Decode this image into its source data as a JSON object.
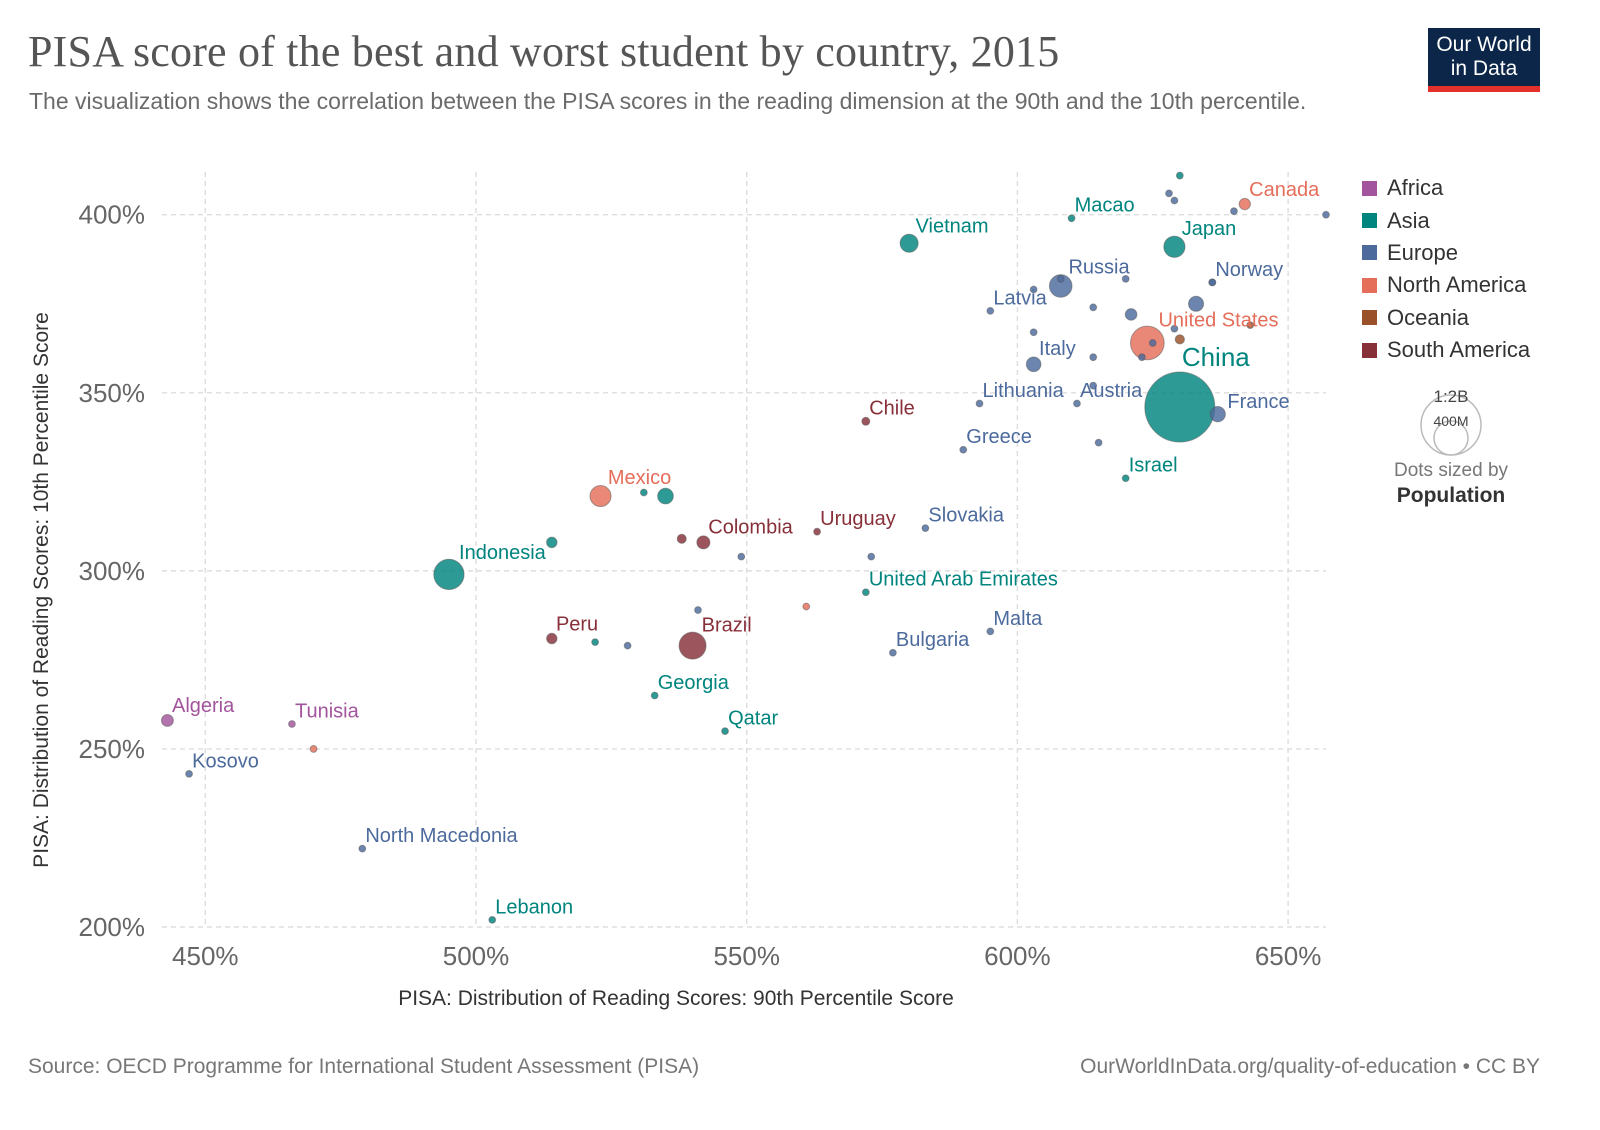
{
  "header": {
    "title": "PISA score of the best and worst student by country, 2015",
    "subtitle": "The visualization shows the correlation between the PISA scores in the reading dimension at the 90th and the 10th percentile."
  },
  "logo": {
    "line1": "Our World",
    "line2": "in Data",
    "bg_color": "#0b2648",
    "accent_color": "#e4302a"
  },
  "legend": {
    "items": [
      {
        "label": "Africa",
        "color": "#a2559c"
      },
      {
        "label": "Asia",
        "color": "#00847e"
      },
      {
        "label": "Europe",
        "color": "#4c6a9c"
      },
      {
        "label": "North America",
        "color": "#e56e5a"
      },
      {
        "label": "Oceania",
        "color": "#9a5129"
      },
      {
        "label": "South America",
        "color": "#883039"
      }
    ],
    "size_legend": {
      "large_label": "1:2B",
      "small_label": "400M",
      "caption": "Dots sized by",
      "caption_bold": "Population"
    }
  },
  "footer": {
    "source": "Source: OECD Programme for International Student Assessment (PISA)",
    "credit": "OurWorldInData.org/quality-of-education • CC BY"
  },
  "chart_data": {
    "type": "scatter",
    "title": "PISA score of the best and worst student by country, 2015",
    "xlabel": "PISA: Distribution of Reading Scores: 90th Percentile Score",
    "ylabel": "PISA: Distribution of Reading Scores: 10th Percentile Score",
    "xlim": [
      442,
      657
    ],
    "ylim": [
      200,
      412
    ],
    "x_ticks": [
      450,
      500,
      550,
      600,
      650
    ],
    "x_tick_labels": [
      "450%",
      "500%",
      "550%",
      "600%",
      "650%"
    ],
    "y_ticks": [
      200,
      250,
      300,
      350,
      400
    ],
    "y_tick_labels": [
      "200%",
      "250%",
      "300%",
      "350%",
      "400%"
    ],
    "grid": true,
    "legend_position": "right",
    "region_colors": {
      "Africa": "#a2559c",
      "Asia": "#00847e",
      "Europe": "#4c6a9c",
      "North America": "#e56e5a",
      "Oceania": "#9a5129",
      "South America": "#883039"
    },
    "points": [
      {
        "label": "China",
        "x": 630,
        "y": 346,
        "region": "Asia",
        "population_m": 1380,
        "label_pos": "top-right",
        "label_size": "large"
      },
      {
        "label": "Indonesia",
        "x": 495,
        "y": 299,
        "region": "Asia",
        "population_m": 258,
        "label_pos": "top-right"
      },
      {
        "label": "United States",
        "x": 624,
        "y": 364,
        "region": "North America",
        "population_m": 320,
        "label_pos": "top-right"
      },
      {
        "label": "Brazil",
        "x": 540,
        "y": 279,
        "region": "South America",
        "population_m": 205,
        "label_pos": "top-right"
      },
      {
        "label": "Russia",
        "x": 608,
        "y": 380,
        "region": "Europe",
        "population_m": 144,
        "label_pos": "top-right"
      },
      {
        "label": "Mexico",
        "x": 523,
        "y": 321,
        "region": "North America",
        "population_m": 125,
        "label_pos": "top-right"
      },
      {
        "label": "Japan",
        "x": 629,
        "y": 391,
        "region": "Asia",
        "population_m": 127,
        "label_pos": "top-right"
      },
      {
        "label": "Vietnam",
        "x": 580,
        "y": 392,
        "region": "Asia",
        "population_m": 92,
        "label_pos": "top-right"
      },
      {
        "label": "Italy",
        "x": 603,
        "y": 358,
        "region": "Europe",
        "population_m": 60,
        "label_pos": "top-right"
      },
      {
        "label": "France",
        "x": 637,
        "y": 344,
        "region": "Europe",
        "population_m": 66,
        "label_pos": "right"
      },
      {
        "label": "Colombia",
        "x": 542,
        "y": 308,
        "region": "South America",
        "population_m": 48,
        "label_pos": "top-right"
      },
      {
        "label": "Canada",
        "x": 642,
        "y": 403,
        "region": "North America",
        "population_m": 36,
        "label_pos": "top-right"
      },
      {
        "label": "Peru",
        "x": 514,
        "y": 281,
        "region": "South America",
        "population_m": 31,
        "label_pos": "top-right"
      },
      {
        "label": "Chile",
        "x": 572,
        "y": 342,
        "region": "South America",
        "population_m": 18,
        "label_pos": "top-right"
      },
      {
        "label": "Uruguay",
        "x": 563,
        "y": 311,
        "region": "South America",
        "population_m": 3.4,
        "label_pos": "top-right"
      },
      {
        "label": "Macao",
        "x": 610,
        "y": 399,
        "region": "Asia",
        "population_m": 0.6,
        "label_pos": "top-right"
      },
      {
        "label": "Norway",
        "x": 636,
        "y": 381,
        "region": "Europe",
        "population_m": 5.2,
        "label_pos": "top-right"
      },
      {
        "label": "Latvia",
        "x": 595,
        "y": 373,
        "region": "Europe",
        "population_m": 2,
        "label_pos": "top-right"
      },
      {
        "label": "Lithuania",
        "x": 593,
        "y": 347,
        "region": "Europe",
        "population_m": 2.9,
        "label_pos": "top-right"
      },
      {
        "label": "Austria",
        "x": 611,
        "y": 347,
        "region": "Europe",
        "population_m": 8.6,
        "label_pos": "top-right"
      },
      {
        "label": "Greece",
        "x": 590,
        "y": 334,
        "region": "Europe",
        "population_m": 10.8,
        "label_pos": "top-right"
      },
      {
        "label": "Israel",
        "x": 620,
        "y": 326,
        "region": "Asia",
        "population_m": 8.4,
        "label_pos": "top-right"
      },
      {
        "label": "Slovakia",
        "x": 583,
        "y": 312,
        "region": "Europe",
        "population_m": 5.4,
        "label_pos": "top-right"
      },
      {
        "label": "United Arab Emirates",
        "x": 572,
        "y": 294,
        "region": "Asia",
        "population_m": 9.2,
        "label_pos": "top-right"
      },
      {
        "label": "Malta",
        "x": 595,
        "y": 283,
        "region": "Europe",
        "population_m": 0.4,
        "label_pos": "top-right"
      },
      {
        "label": "Bulgaria",
        "x": 577,
        "y": 277,
        "region": "Europe",
        "population_m": 7.2,
        "label_pos": "top-right"
      },
      {
        "label": "Georgia",
        "x": 533,
        "y": 265,
        "region": "Asia",
        "population_m": 3.7,
        "label_pos": "top-right"
      },
      {
        "label": "Qatar",
        "x": 546,
        "y": 255,
        "region": "Asia",
        "population_m": 2.5,
        "label_pos": "top-right"
      },
      {
        "label": "Algeria",
        "x": 443,
        "y": 258,
        "region": "Africa",
        "population_m": 40,
        "label_pos": "top-right"
      },
      {
        "label": "Tunisia",
        "x": 466,
        "y": 257,
        "region": "Africa",
        "population_m": 11,
        "label_pos": "top-right"
      },
      {
        "label": "Kosovo",
        "x": 447,
        "y": 243,
        "region": "Europe",
        "population_m": 1.8,
        "label_pos": "top-right"
      },
      {
        "label": "North Macedonia",
        "x": 479,
        "y": 222,
        "region": "Europe",
        "population_m": 2.1,
        "label_pos": "top-right"
      },
      {
        "label": "Lebanon",
        "x": 503,
        "y": 202,
        "region": "Asia",
        "population_m": 6,
        "label_pos": "top-right"
      },
      {
        "label": "",
        "x": 531,
        "y": 322,
        "region": "Asia",
        "population_m": 5
      },
      {
        "label": "",
        "x": 535,
        "y": 321,
        "region": "Asia",
        "population_m": 69
      },
      {
        "label": "",
        "x": 514,
        "y": 308,
        "region": "Asia",
        "population_m": 31
      },
      {
        "label": "",
        "x": 522,
        "y": 280,
        "region": "Asia",
        "population_m": 3
      },
      {
        "label": "",
        "x": 528,
        "y": 279,
        "region": "Europe",
        "population_m": 3
      },
      {
        "label": "",
        "x": 538,
        "y": 309,
        "region": "South America",
        "population_m": 23
      },
      {
        "label": "",
        "x": 549,
        "y": 304,
        "region": "Europe",
        "population_m": 4
      },
      {
        "label": "",
        "x": 573,
        "y": 304,
        "region": "Europe",
        "population_m": 4
      },
      {
        "label": "",
        "x": 541,
        "y": 289,
        "region": "Europe",
        "population_m": 2
      },
      {
        "label": "",
        "x": 561,
        "y": 290,
        "region": "North America",
        "population_m": 1.5
      },
      {
        "label": "",
        "x": 470,
        "y": 250,
        "region": "North America",
        "population_m": 1.3
      },
      {
        "label": "",
        "x": 630,
        "y": 411,
        "region": "Asia",
        "population_m": 5.6
      },
      {
        "label": "",
        "x": 628,
        "y": 406,
        "region": "Europe",
        "population_m": 5.4
      },
      {
        "label": "",
        "x": 629,
        "y": 404,
        "region": "Europe",
        "population_m": 2
      },
      {
        "label": "",
        "x": 640,
        "y": 401,
        "region": "Europe",
        "population_m": 5.5
      },
      {
        "label": "",
        "x": 657,
        "y": 400,
        "region": "Europe",
        "population_m": 5.5
      },
      {
        "label": "",
        "x": 620,
        "y": 382,
        "region": "Europe",
        "population_m": 5.7
      },
      {
        "label": "",
        "x": 603,
        "y": 379,
        "region": "Europe",
        "population_m": 2
      },
      {
        "label": "",
        "x": 636,
        "y": 381,
        "region": "Europe",
        "population_m": 5
      },
      {
        "label": "",
        "x": 633,
        "y": 375,
        "region": "Europe",
        "population_m": 64
      },
      {
        "label": "",
        "x": 621,
        "y": 372,
        "region": "Europe",
        "population_m": 38
      },
      {
        "label": "",
        "x": 614,
        "y": 374,
        "region": "Europe",
        "population_m": 1.3
      },
      {
        "label": "",
        "x": 629,
        "y": 368,
        "region": "Europe",
        "population_m": 5
      },
      {
        "label": "",
        "x": 643,
        "y": 369,
        "region": "Oceania",
        "population_m": 4.7
      },
      {
        "label": "",
        "x": 630,
        "y": 365,
        "region": "Oceania",
        "population_m": 24
      },
      {
        "label": "",
        "x": 625,
        "y": 364,
        "region": "Europe",
        "population_m": 4.6
      },
      {
        "label": "",
        "x": 623,
        "y": 360,
        "region": "Europe",
        "population_m": 10.5
      },
      {
        "label": "",
        "x": 603,
        "y": 367,
        "region": "Europe",
        "population_m": 2
      },
      {
        "label": "",
        "x": 614,
        "y": 360,
        "region": "Europe",
        "population_m": 2
      },
      {
        "label": "",
        "x": 614,
        "y": 352,
        "region": "Europe",
        "population_m": 2
      },
      {
        "label": "",
        "x": 615,
        "y": 336,
        "region": "Europe",
        "population_m": 2
      },
      {
        "label": "",
        "x": 608,
        "y": 382,
        "region": "Europe",
        "population_m": 10
      }
    ]
  }
}
